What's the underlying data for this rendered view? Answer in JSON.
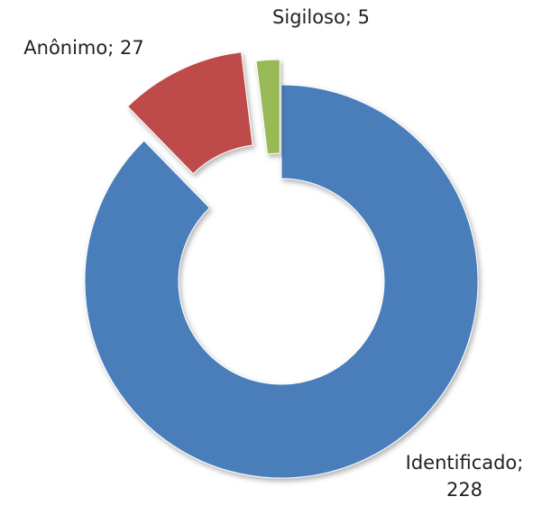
{
  "chart_data": {
    "type": "donut",
    "values": [
      228,
      27,
      5
    ],
    "value_labels": [
      "Identificado; 228",
      "Anônimo; 27",
      "Sigiloso; 5"
    ],
    "colors": [
      "#4a7ebb",
      "#be4b48",
      "#98b954"
    ]
  }
}
